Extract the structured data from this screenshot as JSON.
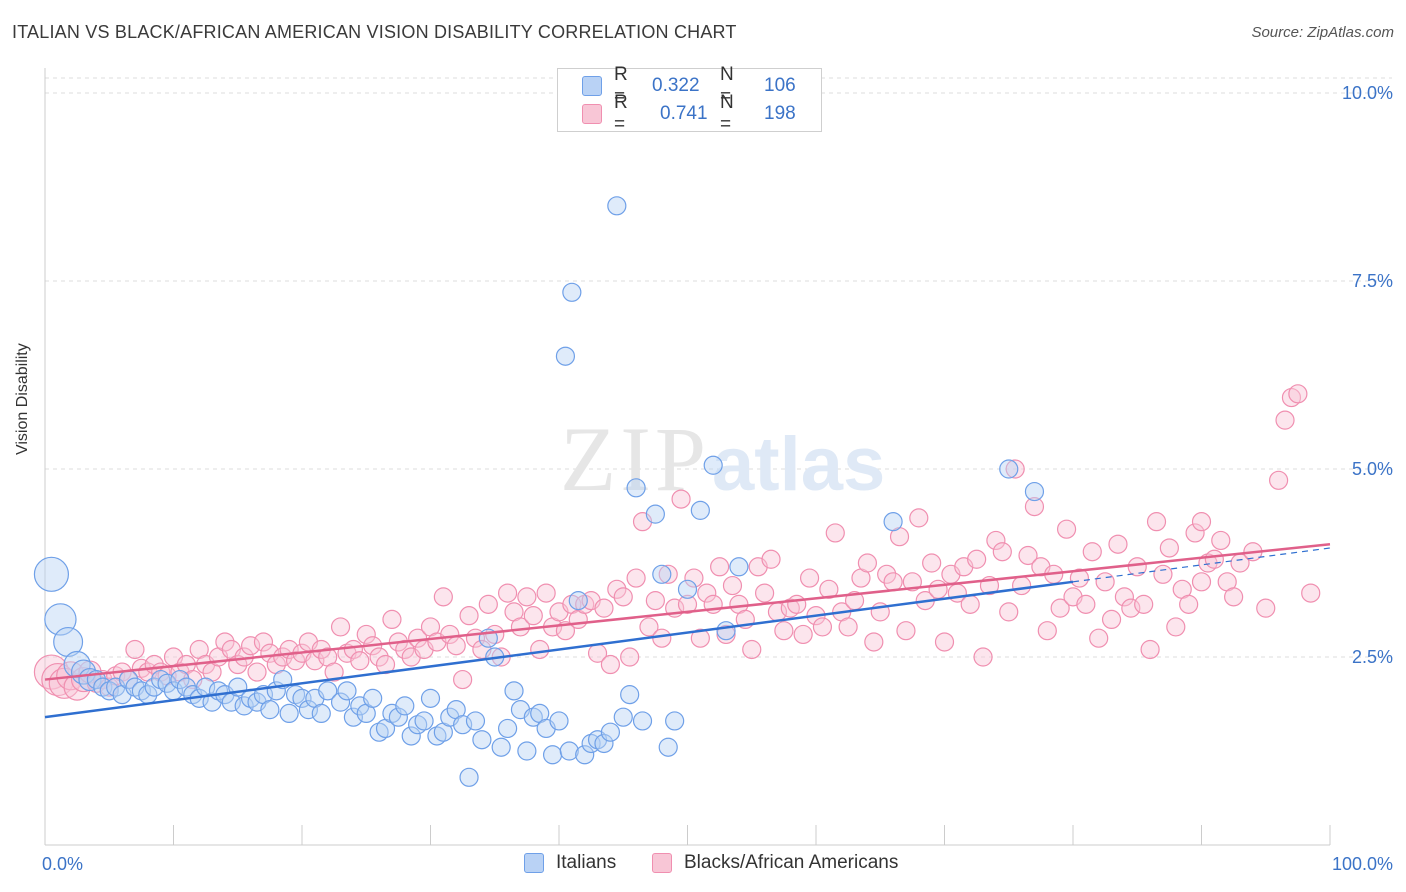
{
  "header": {
    "title": "ITALIAN VS BLACK/AFRICAN AMERICAN VISION DISABILITY CORRELATION CHART",
    "source": "Source: ZipAtlas.com"
  },
  "watermark": {
    "zip": "ZIP",
    "atlas": "atlas"
  },
  "legend_top": {
    "rows": [
      {
        "r_label": "R =",
        "r_value": "0.322",
        "n_label": "N =",
        "n_value": "106"
      },
      {
        "r_label": "R =",
        "r_value": "0.741",
        "n_label": "N =",
        "n_value": "198"
      }
    ]
  },
  "chart_data": {
    "type": "scatter",
    "title": "ITALIAN VS BLACK/AFRICAN AMERICAN VISION DISABILITY CORRELATION CHART",
    "xlabel": "",
    "ylabel": "Vision Disability",
    "xlim": [
      0,
      100
    ],
    "ylim": [
      0,
      10.2
    ],
    "y_ticks": [
      2.5,
      5.0,
      7.5,
      10.0
    ],
    "y_tick_labels": [
      "2.5%",
      "5.0%",
      "7.5%",
      "10.0%"
    ],
    "x_tick_labels": [
      "0.0%",
      "100.0%"
    ],
    "grid": true,
    "legend_placement": "bottom",
    "colors": {
      "italians": "#6fa0e8",
      "black": "#f08fb0",
      "italians_line": "#2f6fd0",
      "black_line": "#e0608a"
    },
    "series": [
      {
        "name": "Italians",
        "trend": {
          "x": [
            0,
            80
          ],
          "y": [
            1.7,
            3.5
          ]
        },
        "points": [
          [
            0.5,
            3.6
          ],
          [
            1.2,
            3.0
          ],
          [
            1.8,
            2.7
          ],
          [
            2.5,
            2.4
          ],
          [
            3.0,
            2.3
          ],
          [
            3.5,
            2.2
          ],
          [
            4.0,
            2.2
          ],
          [
            4.5,
            2.1
          ],
          [
            5.0,
            2.05
          ],
          [
            5.5,
            2.1
          ],
          [
            6.0,
            2.0
          ],
          [
            6.5,
            2.2
          ],
          [
            7.0,
            2.1
          ],
          [
            7.5,
            2.05
          ],
          [
            8.0,
            2.0
          ],
          [
            8.5,
            2.1
          ],
          [
            9.0,
            2.2
          ],
          [
            9.5,
            2.15
          ],
          [
            10,
            2.05
          ],
          [
            10.5,
            2.2
          ],
          [
            11,
            2.1
          ],
          [
            11.5,
            2.0
          ],
          [
            12,
            1.95
          ],
          [
            12.5,
            2.1
          ],
          [
            13,
            1.9
          ],
          [
            13.5,
            2.05
          ],
          [
            14,
            2.0
          ],
          [
            14.5,
            1.9
          ],
          [
            15,
            2.1
          ],
          [
            15.5,
            1.85
          ],
          [
            16,
            1.95
          ],
          [
            16.5,
            1.9
          ],
          [
            17,
            2.0
          ],
          [
            17.5,
            1.8
          ],
          [
            18,
            2.05
          ],
          [
            18.5,
            2.2
          ],
          [
            19,
            1.75
          ],
          [
            19.5,
            2.0
          ],
          [
            20,
            1.95
          ],
          [
            20.5,
            1.8
          ],
          [
            21,
            1.95
          ],
          [
            21.5,
            1.75
          ],
          [
            22,
            2.05
          ],
          [
            23,
            1.9
          ],
          [
            23.5,
            2.05
          ],
          [
            24,
            1.7
          ],
          [
            24.5,
            1.85
          ],
          [
            25,
            1.75
          ],
          [
            25.5,
            1.95
          ],
          [
            26,
            1.5
          ],
          [
            26.5,
            1.55
          ],
          [
            27,
            1.75
          ],
          [
            27.5,
            1.7
          ],
          [
            28,
            1.85
          ],
          [
            28.5,
            1.45
          ],
          [
            29,
            1.6
          ],
          [
            29.5,
            1.65
          ],
          [
            30,
            1.95
          ],
          [
            30.5,
            1.45
          ],
          [
            31,
            1.5
          ],
          [
            31.5,
            1.7
          ],
          [
            32,
            1.8
          ],
          [
            32.5,
            1.6
          ],
          [
            33,
            0.9
          ],
          [
            33.5,
            1.65
          ],
          [
            34,
            1.4
          ],
          [
            34.5,
            2.75
          ],
          [
            35,
            2.5
          ],
          [
            35.5,
            1.3
          ],
          [
            36,
            1.55
          ],
          [
            36.5,
            2.05
          ],
          [
            37,
            1.8
          ],
          [
            37.5,
            1.25
          ],
          [
            38,
            1.7
          ],
          [
            38.5,
            1.75
          ],
          [
            39,
            1.55
          ],
          [
            39.5,
            1.2
          ],
          [
            40,
            1.65
          ],
          [
            40.5,
            6.5
          ],
          [
            40.8,
            1.25
          ],
          [
            41,
            7.35
          ],
          [
            41.5,
            3.25
          ],
          [
            42,
            1.2
          ],
          [
            42.5,
            1.35
          ],
          [
            43,
            1.4
          ],
          [
            43.5,
            1.35
          ],
          [
            44,
            1.5
          ],
          [
            44.5,
            8.5
          ],
          [
            45,
            1.7
          ],
          [
            45.5,
            2.0
          ],
          [
            46,
            4.75
          ],
          [
            46.5,
            1.65
          ],
          [
            47.5,
            4.4
          ],
          [
            48,
            3.6
          ],
          [
            48.5,
            1.3
          ],
          [
            49,
            1.65
          ],
          [
            50,
            3.4
          ],
          [
            51,
            4.45
          ],
          [
            52,
            5.05
          ],
          [
            53,
            2.85
          ],
          [
            54,
            3.7
          ],
          [
            66,
            4.3
          ],
          [
            75,
            5.0
          ],
          [
            77,
            4.7
          ]
        ]
      },
      {
        "name": "Blacks/African Americans",
        "trend": {
          "x": [
            0,
            100
          ],
          "y": [
            2.2,
            4.0
          ]
        },
        "points": [
          [
            0.5,
            2.3
          ],
          [
            1.0,
            2.2
          ],
          [
            1.5,
            2.15
          ],
          [
            2.0,
            2.25
          ],
          [
            2.5,
            2.1
          ],
          [
            3.0,
            2.2
          ],
          [
            3.5,
            2.3
          ],
          [
            4.0,
            2.15
          ],
          [
            4.5,
            2.2
          ],
          [
            5.0,
            2.1
          ],
          [
            5.5,
            2.25
          ],
          [
            6.0,
            2.3
          ],
          [
            6.5,
            2.2
          ],
          [
            7.0,
            2.6
          ],
          [
            7.5,
            2.35
          ],
          [
            8.0,
            2.3
          ],
          [
            8.5,
            2.4
          ],
          [
            9.0,
            2.3
          ],
          [
            9.5,
            2.25
          ],
          [
            10,
            2.5
          ],
          [
            10.5,
            2.3
          ],
          [
            11,
            2.4
          ],
          [
            11.5,
            2.2
          ],
          [
            12,
            2.6
          ],
          [
            12.5,
            2.4
          ],
          [
            13,
            2.3
          ],
          [
            13.5,
            2.5
          ],
          [
            14,
            2.7
          ],
          [
            14.5,
            2.6
          ],
          [
            15,
            2.4
          ],
          [
            15.5,
            2.5
          ],
          [
            16,
            2.65
          ],
          [
            16.5,
            2.3
          ],
          [
            17,
            2.7
          ],
          [
            17.5,
            2.55
          ],
          [
            18,
            2.4
          ],
          [
            18.5,
            2.5
          ],
          [
            19,
            2.6
          ],
          [
            19.5,
            2.45
          ],
          [
            20,
            2.55
          ],
          [
            20.5,
            2.7
          ],
          [
            21,
            2.45
          ],
          [
            21.5,
            2.6
          ],
          [
            22,
            2.5
          ],
          [
            22.5,
            2.3
          ],
          [
            23,
            2.9
          ],
          [
            23.5,
            2.55
          ],
          [
            24,
            2.6
          ],
          [
            24.5,
            2.45
          ],
          [
            25,
            2.8
          ],
          [
            25.5,
            2.65
          ],
          [
            26,
            2.5
          ],
          [
            26.5,
            2.4
          ],
          [
            27,
            3.0
          ],
          [
            27.5,
            2.7
          ],
          [
            28,
            2.6
          ],
          [
            28.5,
            2.5
          ],
          [
            29,
            2.75
          ],
          [
            29.5,
            2.6
          ],
          [
            30,
            2.9
          ],
          [
            30.5,
            2.7
          ],
          [
            31,
            3.3
          ],
          [
            31.5,
            2.8
          ],
          [
            32,
            2.65
          ],
          [
            32.5,
            2.2
          ],
          [
            33,
            3.05
          ],
          [
            33.5,
            2.75
          ],
          [
            34,
            2.6
          ],
          [
            34.5,
            3.2
          ],
          [
            35,
            2.8
          ],
          [
            35.5,
            2.5
          ],
          [
            36,
            3.35
          ],
          [
            36.5,
            3.1
          ],
          [
            37,
            2.9
          ],
          [
            37.5,
            3.3
          ],
          [
            38,
            3.05
          ],
          [
            38.5,
            2.6
          ],
          [
            39,
            3.35
          ],
          [
            39.5,
            2.9
          ],
          [
            40,
            3.1
          ],
          [
            40.5,
            2.85
          ],
          [
            41,
            3.2
          ],
          [
            41.5,
            3.0
          ],
          [
            42,
            3.2
          ],
          [
            42.5,
            3.25
          ],
          [
            43,
            2.55
          ],
          [
            43.5,
            3.15
          ],
          [
            44,
            2.4
          ],
          [
            44.5,
            3.4
          ],
          [
            45,
            3.3
          ],
          [
            45.5,
            2.5
          ],
          [
            46,
            3.55
          ],
          [
            46.5,
            4.3
          ],
          [
            47,
            2.9
          ],
          [
            47.5,
            3.25
          ],
          [
            48,
            2.75
          ],
          [
            48.5,
            3.6
          ],
          [
            49,
            3.15
          ],
          [
            49.5,
            4.6
          ],
          [
            50,
            3.2
          ],
          [
            50.5,
            3.55
          ],
          [
            51,
            2.75
          ],
          [
            51.5,
            3.35
          ],
          [
            52,
            3.2
          ],
          [
            52.5,
            3.7
          ],
          [
            53,
            2.8
          ],
          [
            53.5,
            3.45
          ],
          [
            54,
            3.2
          ],
          [
            54.5,
            3.0
          ],
          [
            55,
            2.6
          ],
          [
            55.5,
            3.7
          ],
          [
            56,
            3.35
          ],
          [
            56.5,
            3.8
          ],
          [
            57,
            3.1
          ],
          [
            57.5,
            2.85
          ],
          [
            58,
            3.15
          ],
          [
            58.5,
            3.2
          ],
          [
            59,
            2.8
          ],
          [
            59.5,
            3.55
          ],
          [
            60,
            3.05
          ],
          [
            60.5,
            2.9
          ],
          [
            61,
            3.4
          ],
          [
            61.5,
            4.15
          ],
          [
            62,
            3.1
          ],
          [
            62.5,
            2.9
          ],
          [
            63,
            3.25
          ],
          [
            63.5,
            3.55
          ],
          [
            64,
            3.75
          ],
          [
            64.5,
            2.7
          ],
          [
            65,
            3.1
          ],
          [
            65.5,
            3.6
          ],
          [
            66,
            3.5
          ],
          [
            66.5,
            4.1
          ],
          [
            67,
            2.85
          ],
          [
            67.5,
            3.5
          ],
          [
            68,
            4.35
          ],
          [
            68.5,
            3.25
          ],
          [
            69,
            3.75
          ],
          [
            69.5,
            3.4
          ],
          [
            70,
            2.7
          ],
          [
            70.5,
            3.6
          ],
          [
            71,
            3.35
          ],
          [
            71.5,
            3.7
          ],
          [
            72,
            3.2
          ],
          [
            72.5,
            3.8
          ],
          [
            73,
            2.5
          ],
          [
            73.5,
            3.45
          ],
          [
            74,
            4.05
          ],
          [
            74.5,
            3.9
          ],
          [
            75,
            3.1
          ],
          [
            75.5,
            5.0
          ],
          [
            76,
            3.45
          ],
          [
            76.5,
            3.85
          ],
          [
            77,
            4.5
          ],
          [
            77.5,
            3.7
          ],
          [
            78,
            2.85
          ],
          [
            78.5,
            3.6
          ],
          [
            79,
            3.15
          ],
          [
            79.5,
            4.2
          ],
          [
            80,
            3.3
          ],
          [
            80.5,
            3.55
          ],
          [
            81,
            3.2
          ],
          [
            81.5,
            3.9
          ],
          [
            82,
            2.75
          ],
          [
            82.5,
            3.5
          ],
          [
            83,
            3.0
          ],
          [
            83.5,
            4.0
          ],
          [
            84,
            3.3
          ],
          [
            84.5,
            3.15
          ],
          [
            85,
            3.7
          ],
          [
            85.5,
            3.2
          ],
          [
            86,
            2.6
          ],
          [
            86.5,
            4.3
          ],
          [
            87,
            3.6
          ],
          [
            87.5,
            3.95
          ],
          [
            88,
            2.9
          ],
          [
            88.5,
            3.4
          ],
          [
            89,
            3.2
          ],
          [
            89.5,
            4.15
          ],
          [
            90,
            4.3
          ],
          [
            90.5,
            3.75
          ],
          [
            91,
            3.8
          ],
          [
            91.5,
            4.05
          ],
          [
            92,
            3.5
          ],
          [
            92.5,
            3.3
          ],
          [
            93,
            3.75
          ],
          [
            95,
            3.15
          ],
          [
            96,
            4.85
          ],
          [
            96.5,
            5.65
          ],
          [
            97,
            5.95
          ],
          [
            97.5,
            6.0
          ],
          [
            90,
            3.5
          ],
          [
            94,
            3.9
          ],
          [
            98.5,
            3.35
          ]
        ]
      }
    ]
  },
  "legend_bottom": {
    "items": [
      "Italians",
      "Blacks/African Americans"
    ]
  }
}
